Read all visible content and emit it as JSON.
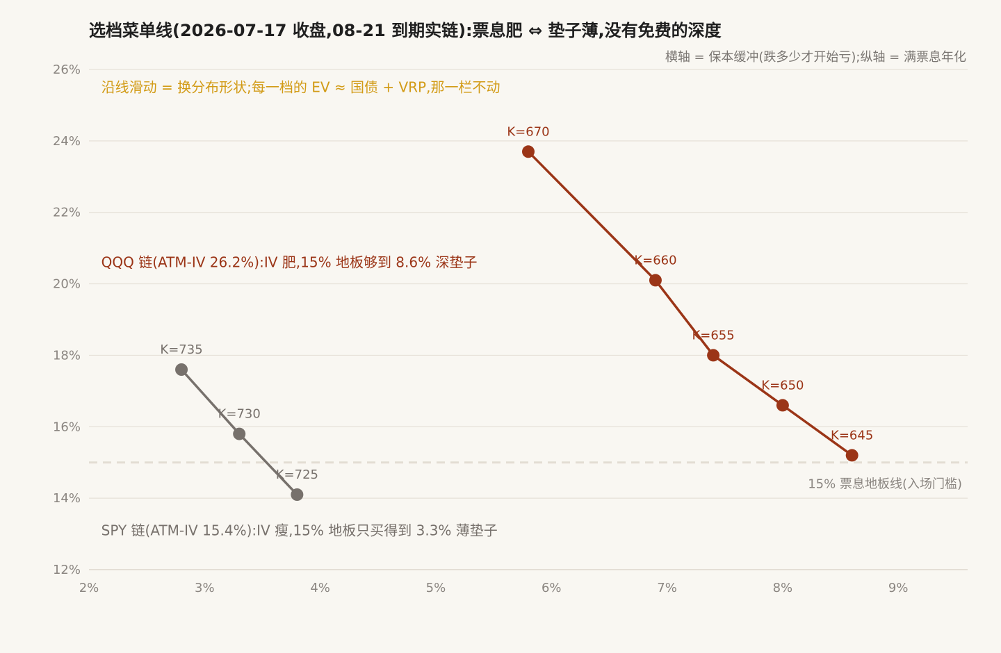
{
  "chart_data": {
    "type": "line",
    "title": "选档菜单线(2026-07-17 收盘,08-21 到期实链):票息肥 ⇔ 垫子薄,没有免费的深度",
    "subtitle": "横轴 = 保本缓冲(跌多少才开始亏);纵轴 = 满票息年化",
    "xlabel": "",
    "ylabel": "",
    "xlim": [
      2,
      9.6
    ],
    "ylim": [
      12,
      26
    ],
    "x_ticks": [
      {
        "value": 2,
        "label": "2%"
      },
      {
        "value": 3,
        "label": "3%"
      },
      {
        "value": 4,
        "label": "4%"
      },
      {
        "value": 5,
        "label": "5%"
      },
      {
        "value": 6,
        "label": "6%"
      },
      {
        "value": 7,
        "label": "7%"
      },
      {
        "value": 8,
        "label": "8%"
      },
      {
        "value": 9,
        "label": "9%"
      }
    ],
    "y_ticks": [
      {
        "value": 12,
        "label": "12%"
      },
      {
        "value": 14,
        "label": "14%"
      },
      {
        "value": 16,
        "label": "16%"
      },
      {
        "value": 18,
        "label": "18%"
      },
      {
        "value": 20,
        "label": "20%"
      },
      {
        "value": 22,
        "label": "22%"
      },
      {
        "value": 24,
        "label": "24%"
      },
      {
        "value": 26,
        "label": "26%"
      }
    ],
    "grid": true,
    "series": [
      {
        "color": "#9b3517",
        "points": [
          {
            "x": 5.8,
            "y": 23.7,
            "label": "K=670"
          },
          {
            "x": 6.9,
            "y": 20.1,
            "label": "K=660"
          },
          {
            "x": 7.4,
            "y": 18.0,
            "label": "K=655"
          },
          {
            "x": 8.0,
            "y": 16.6,
            "label": "K=650"
          },
          {
            "x": 8.6,
            "y": 15.2,
            "label": "K=645"
          }
        ]
      },
      {
        "color": "#77716c",
        "points": [
          {
            "x": 2.8,
            "y": 17.6,
            "label": "K=735"
          },
          {
            "x": 3.3,
            "y": 15.8,
            "label": "K=730"
          },
          {
            "x": 3.8,
            "y": 14.1,
            "label": "K=725"
          }
        ]
      }
    ],
    "reference_line": {
      "y": 15,
      "label": "15% 票息地板线(入场门槛)",
      "color": "#e3ddd3"
    },
    "annotations": [
      {
        "text": "沿线滑动 = 换分布形状;每一档的 EV ≈ 国债 + VRP,那一栏不动",
        "x": 2.1,
        "y": 25.5,
        "color": "#d29b16"
      },
      {
        "text": "QQQ 链(ATM-IV 26.2%):IV 肥,15% 地板够到 8.6% 深垫子",
        "x": 2.1,
        "y": 20.6,
        "color": "#9b3517"
      },
      {
        "text": "SPY 链(ATM-IV 15.4%):IV 瘦,15% 地板只买得到 3.3% 薄垫子",
        "x": 2.1,
        "y": 13.1,
        "color": "#77716c"
      }
    ]
  }
}
